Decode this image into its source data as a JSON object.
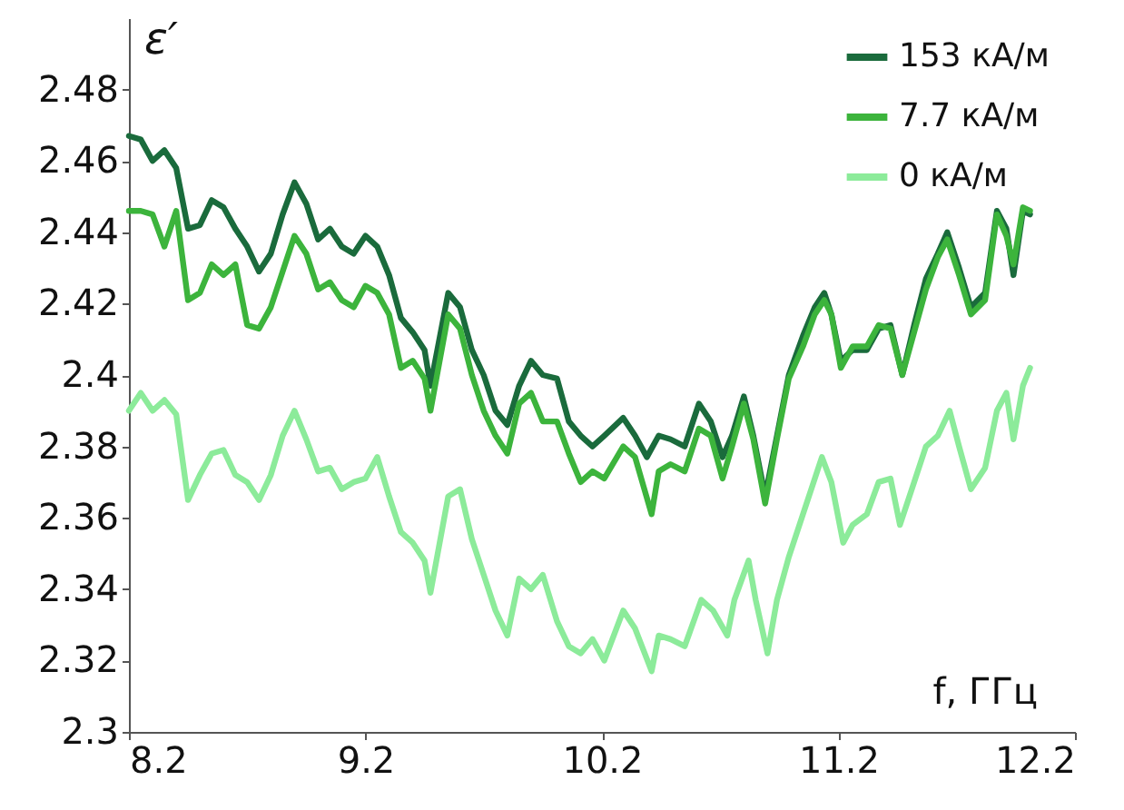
{
  "chart_data": {
    "type": "line",
    "xlabel": "f, ГГц",
    "ylabel": "ε′",
    "xlim": [
      8.2,
      12.2
    ],
    "xticks": [
      8.2,
      9.2,
      10.2,
      11.2,
      12.2
    ],
    "ylim": [
      2.3,
      2.5
    ],
    "yticks": [
      2.3,
      2.32,
      2.34,
      2.36,
      2.38,
      2.4,
      2.42,
      2.44,
      2.46,
      2.48
    ],
    "grid": false,
    "legend": "top right",
    "marker": "none",
    "line_style": "solid",
    "series": [
      {
        "name": "153  кА/м",
        "color": "#1a6b3c",
        "x": [
          8.2,
          8.25,
          8.3,
          8.35,
          8.4,
          8.45,
          8.5,
          8.55,
          8.6,
          8.65,
          8.7,
          8.75,
          8.8,
          8.85,
          8.9,
          8.95,
          9.0,
          9.05,
          9.1,
          9.15,
          9.2,
          9.25,
          9.3,
          9.35,
          9.4,
          9.45,
          9.475,
          9.55,
          9.6,
          9.65,
          9.7,
          9.75,
          9.8,
          9.85,
          9.9,
          9.95,
          10.01,
          10.06,
          10.11,
          10.16,
          10.21,
          10.29,
          10.34,
          10.39,
          10.44,
          10.49,
          10.55,
          10.61,
          10.66,
          10.71,
          10.75,
          10.8,
          10.84,
          10.89,
          10.94,
          10.99,
          11.05,
          11.1,
          11.14,
          11.17,
          11.21,
          11.26,
          11.32,
          11.37,
          11.42,
          11.47,
          11.52,
          11.57,
          11.62,
          11.66,
          11.71,
          11.76,
          11.82,
          11.87,
          11.91,
          11.94,
          11.98,
          12.01
        ],
        "values": [
          2.467,
          2.466,
          2.46,
          2.463,
          2.458,
          2.441,
          2.442,
          2.449,
          2.447,
          2.441,
          2.436,
          2.429,
          2.434,
          2.445,
          2.454,
          2.448,
          2.438,
          2.441,
          2.436,
          2.434,
          2.439,
          2.436,
          2.428,
          2.416,
          2.412,
          2.407,
          2.397,
          2.423,
          2.419,
          2.407,
          2.4,
          2.39,
          2.386,
          2.397,
          2.404,
          2.4,
          2.399,
          2.387,
          2.383,
          2.38,
          2.383,
          2.388,
          2.383,
          2.377,
          2.383,
          2.382,
          2.38,
          2.392,
          2.387,
          2.377,
          2.383,
          2.394,
          2.383,
          2.366,
          2.383,
          2.4,
          2.411,
          2.419,
          2.423,
          2.417,
          2.404,
          2.407,
          2.407,
          2.413,
          2.414,
          2.4,
          2.414,
          2.427,
          2.434,
          2.44,
          2.43,
          2.419,
          2.423,
          2.446,
          2.441,
          2.428,
          2.446,
          2.445
        ]
      },
      {
        "name": "7.7 кА/м",
        "color": "#3cb43c",
        "x": [
          8.2,
          8.25,
          8.3,
          8.35,
          8.4,
          8.45,
          8.5,
          8.55,
          8.6,
          8.65,
          8.7,
          8.75,
          8.8,
          8.85,
          8.9,
          8.95,
          9.0,
          9.05,
          9.1,
          9.15,
          9.2,
          9.25,
          9.3,
          9.35,
          9.4,
          9.45,
          9.475,
          9.55,
          9.6,
          9.65,
          9.7,
          9.75,
          9.8,
          9.85,
          9.9,
          9.95,
          10.01,
          10.06,
          10.11,
          10.16,
          10.21,
          10.29,
          10.34,
          10.41,
          10.44,
          10.49,
          10.55,
          10.61,
          10.66,
          10.71,
          10.75,
          10.8,
          10.84,
          10.89,
          10.94,
          10.99,
          11.05,
          11.1,
          11.14,
          11.17,
          11.21,
          11.26,
          11.32,
          11.37,
          11.42,
          11.47,
          11.52,
          11.57,
          11.62,
          11.66,
          11.71,
          11.76,
          11.82,
          11.87,
          11.91,
          11.94,
          11.98,
          12.01
        ],
        "values": [
          2.446,
          2.446,
          2.445,
          2.436,
          2.446,
          2.421,
          2.423,
          2.431,
          2.428,
          2.431,
          2.414,
          2.413,
          2.419,
          2.429,
          2.439,
          2.434,
          2.424,
          2.426,
          2.421,
          2.419,
          2.425,
          2.423,
          2.417,
          2.402,
          2.404,
          2.399,
          2.39,
          2.417,
          2.413,
          2.4,
          2.39,
          2.383,
          2.378,
          2.392,
          2.395,
          2.387,
          2.387,
          2.378,
          2.37,
          2.373,
          2.371,
          2.38,
          2.377,
          2.361,
          2.373,
          2.375,
          2.373,
          2.385,
          2.383,
          2.371,
          2.38,
          2.392,
          2.382,
          2.364,
          2.382,
          2.399,
          2.408,
          2.417,
          2.421,
          2.417,
          2.402,
          2.408,
          2.408,
          2.414,
          2.413,
          2.4,
          2.412,
          2.424,
          2.433,
          2.438,
          2.428,
          2.417,
          2.421,
          2.445,
          2.439,
          2.431,
          2.447,
          2.446
        ]
      },
      {
        "name": "0 кА/м",
        "color": "#8ceb9a",
        "x": [
          8.2,
          8.25,
          8.3,
          8.35,
          8.4,
          8.45,
          8.5,
          8.55,
          8.6,
          8.65,
          8.7,
          8.75,
          8.8,
          8.85,
          8.9,
          8.95,
          9.0,
          9.05,
          9.1,
          9.15,
          9.2,
          9.25,
          9.3,
          9.35,
          9.4,
          9.45,
          9.475,
          9.55,
          9.6,
          9.65,
          9.7,
          9.75,
          9.8,
          9.85,
          9.9,
          9.95,
          10.01,
          10.06,
          10.11,
          10.16,
          10.21,
          10.29,
          10.34,
          10.41,
          10.44,
          10.49,
          10.55,
          10.62,
          10.67,
          10.73,
          10.76,
          10.82,
          10.85,
          10.9,
          10.94,
          10.99,
          11.05,
          11.1,
          11.13,
          11.17,
          11.22,
          11.26,
          11.32,
          11.37,
          11.42,
          11.46,
          11.52,
          11.57,
          11.62,
          11.67,
          11.71,
          11.76,
          11.82,
          11.87,
          11.91,
          11.94,
          11.98,
          12.01
        ],
        "values": [
          2.39,
          2.395,
          2.39,
          2.393,
          2.389,
          2.365,
          2.372,
          2.378,
          2.379,
          2.372,
          2.37,
          2.365,
          2.372,
          2.383,
          2.39,
          2.382,
          2.373,
          2.374,
          2.368,
          2.37,
          2.371,
          2.377,
          2.366,
          2.356,
          2.353,
          2.348,
          2.339,
          2.366,
          2.368,
          2.354,
          2.344,
          2.334,
          2.327,
          2.343,
          2.34,
          2.344,
          2.331,
          2.324,
          2.322,
          2.326,
          2.32,
          2.334,
          2.329,
          2.317,
          2.327,
          2.326,
          2.324,
          2.337,
          2.334,
          2.327,
          2.337,
          2.348,
          2.337,
          2.322,
          2.337,
          2.349,
          2.361,
          2.371,
          2.377,
          2.37,
          2.353,
          2.358,
          2.361,
          2.37,
          2.371,
          2.358,
          2.37,
          2.38,
          2.383,
          2.39,
          2.38,
          2.368,
          2.374,
          2.39,
          2.395,
          2.382,
          2.397,
          2.402
        ]
      }
    ]
  }
}
